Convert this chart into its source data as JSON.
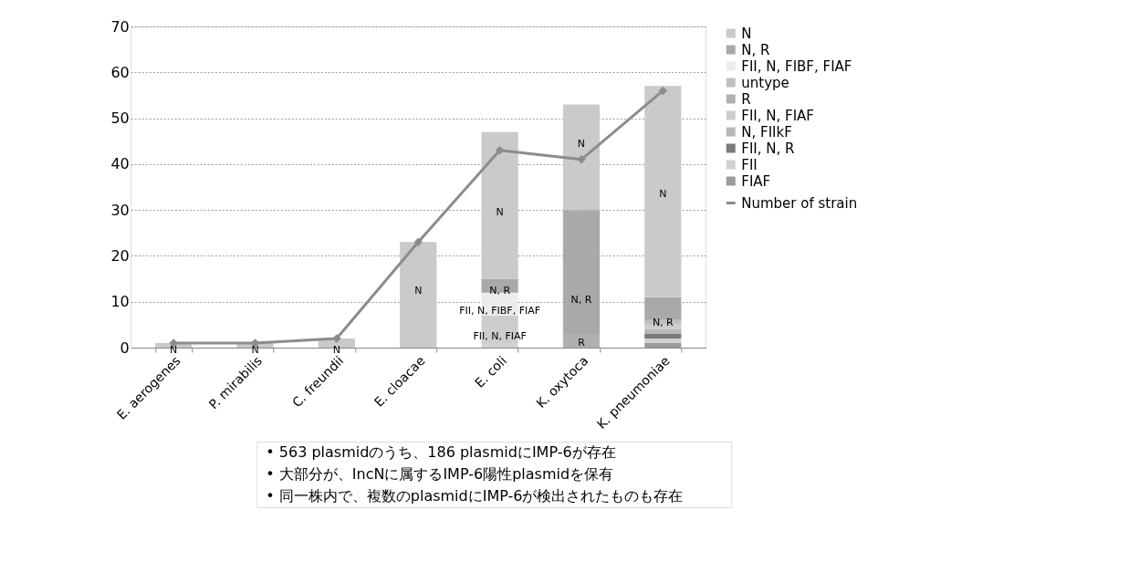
{
  "chart_data": {
    "type": "bar",
    "stacked": true,
    "categories": [
      "E. aerogenes",
      "P. mirabilis",
      "C. freundii",
      "E. cloacae",
      "E. coli",
      "K. oxytoca",
      "K. pneumoniae"
    ],
    "series": [
      {
        "name": "FIAF",
        "color": "#9a9a9a",
        "values": [
          0,
          0,
          0,
          0,
          0,
          0,
          1
        ]
      },
      {
        "name": "FII",
        "color": "#d2d2d2",
        "values": [
          0,
          0,
          0,
          0,
          1,
          0,
          1
        ]
      },
      {
        "name": "FII, N, R",
        "color": "#7a7a7a",
        "values": [
          0,
          0,
          0,
          0,
          0,
          0,
          1
        ]
      },
      {
        "name": "N, FIIkF",
        "color": "#b8b8b8",
        "values": [
          0,
          0,
          0,
          0,
          0,
          0,
          1
        ]
      },
      {
        "name": "FII, N, FIAF",
        "color": "#cdcdcd",
        "values": [
          0,
          0,
          0,
          0,
          6,
          0,
          1
        ]
      },
      {
        "name": "R",
        "color": "#b0b0b0",
        "values": [
          0,
          0,
          0,
          0,
          0,
          3,
          0
        ]
      },
      {
        "name": "untype",
        "color": "#bfbfbf",
        "values": [
          0,
          0,
          0,
          0,
          0,
          0,
          1
        ]
      },
      {
        "name": "FII, N, FIBF, FIAF",
        "color": "#ececec",
        "values": [
          0,
          0,
          0,
          0,
          5,
          0,
          0
        ]
      },
      {
        "name": "N, R",
        "color": "#a9a9a9",
        "values": [
          0,
          0,
          0,
          0,
          3,
          27,
          5
        ]
      },
      {
        "name": "N",
        "color": "#cacaca",
        "values": [
          1,
          1,
          2,
          23,
          32,
          23,
          46
        ]
      },
      {
        "name": "Number of strain",
        "type": "line",
        "color": "#8c8c8c",
        "marker": "diamond",
        "values": [
          1,
          1,
          2,
          23,
          43,
          41,
          56
        ]
      }
    ],
    "ylim": [
      0,
      70
    ],
    "yticks": [
      0,
      10,
      20,
      30,
      40,
      50,
      60,
      70
    ],
    "grid": "y",
    "legend": "right",
    "annotations": [
      {
        "text": "N",
        "x": "E. aerogenes",
        "y": 0
      },
      {
        "text": "N",
        "x": "P. mirabilis",
        "y": 0
      },
      {
        "text": "N",
        "x": "C. freundii",
        "y": 0
      },
      {
        "text": "N",
        "x": "E. cloacae",
        "y": 13
      },
      {
        "text": "N",
        "x": "E. coli",
        "y": 30
      },
      {
        "text": "N, R",
        "x": "E. coli",
        "y": 13
      },
      {
        "text": "FII, N, FIBF, FIAF",
        "x": "E. coli",
        "y": 8.5
      },
      {
        "text": "FII, N, FIAF",
        "x": "E. coli",
        "y": 3
      },
      {
        "text": "N",
        "x": "K. oxytoca",
        "y": 45
      },
      {
        "text": "N, R",
        "x": "K. oxytoca",
        "y": 11
      },
      {
        "text": "R",
        "x": "K. oxytoca",
        "y": 1.5
      },
      {
        "text": "N",
        "x": "K. pneumoniae",
        "y": 34
      },
      {
        "text": "N, R",
        "x": "K. pneumoniae",
        "y": 6
      },
      "• 563 plasmidのうち、186 plasmidにIMP-6が存在",
      "• 大部分が、IncNに属するIMP-6陽性plasmidを保有",
      "• 同一株内で、複数のplasmidにIMP-6が検出されたものも存在"
    ]
  }
}
